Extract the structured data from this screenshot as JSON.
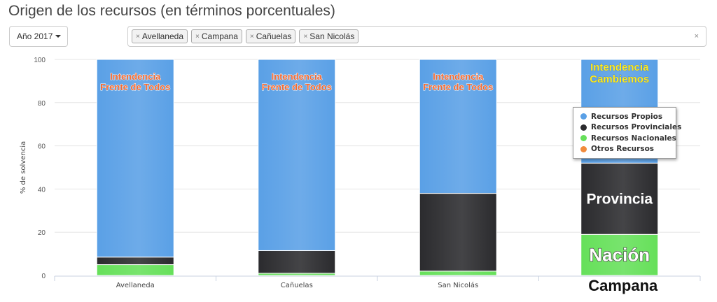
{
  "page": {
    "title": "Origen de los recursos (en términos porcentuales)"
  },
  "filters": {
    "year_label": "Año 2017",
    "tags": [
      "Avellaneda",
      "Campana",
      "Cañuelas",
      "San Nicolás"
    ],
    "tag_remove_symbol": "×",
    "clear_symbol": "×"
  },
  "chart_data": {
    "type": "bar",
    "stacked": true,
    "ylabel": "% de solvencia",
    "ylim": [
      0,
      100
    ],
    "yticks": [
      0,
      20,
      40,
      60,
      80,
      100
    ],
    "categories": [
      "Avellaneda",
      "Cañuelas",
      "San Nicolás",
      "Campana"
    ],
    "category_labels": [
      "Avellaneda",
      "Cañuelas",
      "San Nicolás",
      "Campana"
    ],
    "series": [
      {
        "name": "Recursos Nacionales",
        "color": "#66e05a",
        "values": [
          5,
          1,
          2,
          19
        ]
      },
      {
        "name": "Otros Recursos",
        "color": "#f28b3c",
        "values": [
          0,
          0,
          0,
          0
        ]
      },
      {
        "name": "Recursos Provinciales",
        "color": "#2b2b2e",
        "values": [
          3.5,
          10.5,
          36,
          33
        ]
      },
      {
        "name": "Recursos Propios",
        "color": "#5aa0e6",
        "values": [
          91.5,
          88.5,
          62,
          48
        ]
      }
    ],
    "legend": {
      "placement": "right",
      "items": [
        {
          "label": "Recursos Propios",
          "color": "#5aa0e6"
        },
        {
          "label": "Recursos Provinciales",
          "color": "#2b2b2e"
        },
        {
          "label": "Recursos Nacionales",
          "color": "#66e05a"
        },
        {
          "label": "Otros Recursos",
          "color": "#f28b3c"
        }
      ]
    },
    "annotations": {
      "bar_labels": [
        [
          "Intendencia",
          "Frente de Todos"
        ],
        [
          "Intendencia",
          "Frente de Todos"
        ],
        [
          "Intendencia",
          "Frente de Todos"
        ],
        [
          "Intendencia",
          "Cambiemos"
        ]
      ],
      "bar_label_colors": [
        "#f26a32",
        "#f26a32",
        "#f26a32",
        "#ffea1f"
      ],
      "segment_labels": [
        {
          "category": "Campana",
          "series": "Recursos Provinciales",
          "text": "Provincia"
        },
        {
          "category": "Campana",
          "series": "Recursos Nacionales",
          "text": "Nación"
        }
      ]
    },
    "grid": true
  }
}
